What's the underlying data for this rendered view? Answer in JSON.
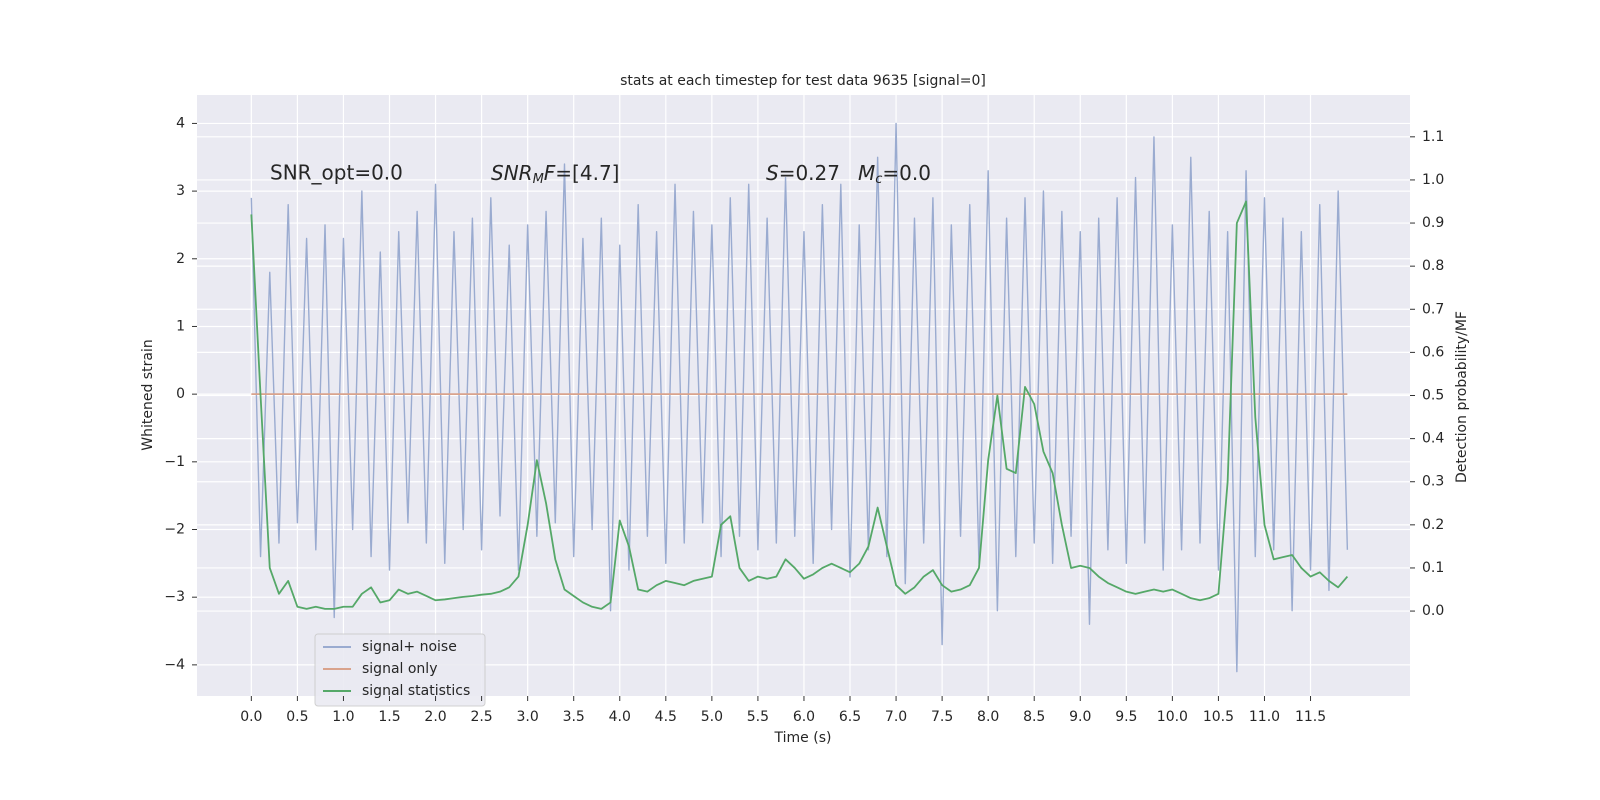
{
  "chart_data": {
    "type": "line",
    "title": "stats at each timestep for test data 9635 [signal=0]",
    "xlabel": "Time (s)",
    "ylabel": "Whitened strain",
    "y2label": "Detection probability/MF",
    "annotations": {
      "snr_opt": "SNR_opt=0.0",
      "snr_mf": [
        "SNR",
        "M",
        "F",
        "=[4.7]"
      ],
      "stats": [
        "S",
        "=0.27",
        "M",
        "c",
        "=0.0"
      ]
    },
    "xlim": [
      -0.59,
      12.58
    ],
    "ylim": [
      -4.46,
      4.42
    ],
    "y2lim": [
      -0.197,
      1.197
    ],
    "xticks": [
      {
        "value": 0,
        "label": "0.0"
      },
      {
        "value": 0.5,
        "label": "0.5"
      },
      {
        "value": 1,
        "label": "1.0"
      },
      {
        "value": 1.5,
        "label": "1.5"
      },
      {
        "value": 2,
        "label": "2.0"
      },
      {
        "value": 2.5,
        "label": "2.5"
      },
      {
        "value": 3,
        "label": "3.0"
      },
      {
        "value": 3.5,
        "label": "3.5"
      },
      {
        "value": 4,
        "label": "4.0"
      },
      {
        "value": 4.5,
        "label": "4.5"
      },
      {
        "value": 5,
        "label": "5.0"
      },
      {
        "value": 5.5,
        "label": "5.5"
      },
      {
        "value": 6,
        "label": "6.0"
      },
      {
        "value": 6.5,
        "label": "6.5"
      },
      {
        "value": 7,
        "label": "7.0"
      },
      {
        "value": 7.5,
        "label": "7.5"
      },
      {
        "value": 8,
        "label": "8.0"
      },
      {
        "value": 8.5,
        "label": "8.5"
      },
      {
        "value": 9,
        "label": "9.0"
      },
      {
        "value": 9.5,
        "label": "9.5"
      },
      {
        "value": 10,
        "label": "10.0"
      },
      {
        "value": 10.5,
        "label": "10.5"
      },
      {
        "value": 11,
        "label": "11.0"
      },
      {
        "value": 11.5,
        "label": "11.5"
      }
    ],
    "yticks": [
      4,
      3,
      2,
      1,
      0,
      {
        "value": -1,
        "label": "−1"
      },
      {
        "value": -2,
        "label": "−2"
      },
      {
        "value": -3,
        "label": "−3"
      },
      {
        "value": -4,
        "label": "−4"
      }
    ],
    "y2ticks": [
      {
        "value": 0,
        "label": "0.0"
      },
      {
        "value": 0.1,
        "label": "0.1"
      },
      {
        "value": 0.2,
        "label": "0.2"
      },
      {
        "value": 0.3,
        "label": "0.3"
      },
      {
        "value": 0.4,
        "label": "0.4"
      },
      {
        "value": 0.5,
        "label": "0.5"
      },
      {
        "value": 0.6,
        "label": "0.6"
      },
      {
        "value": 0.7,
        "label": "0.7"
      },
      {
        "value": 0.8,
        "label": "0.8"
      },
      {
        "value": 0.9,
        "label": "0.9"
      },
      {
        "value": 1,
        "label": "1.0"
      },
      {
        "value": 1.1,
        "label": "1.1"
      }
    ],
    "grid": true,
    "legend": "lower left",
    "x": [
      0,
      0.1,
      0.2,
      0.3,
      0.4,
      0.5,
      0.6,
      0.7,
      0.8,
      0.9,
      1,
      1.1,
      1.2,
      1.3,
      1.4,
      1.5,
      1.6,
      1.7,
      1.8,
      1.9,
      2,
      2.1,
      2.2,
      2.3,
      2.4,
      2.5,
      2.6,
      2.7,
      2.8,
      2.9,
      3,
      3.1,
      3.2,
      3.3,
      3.4,
      3.5,
      3.6,
      3.7,
      3.8,
      3.9,
      4,
      4.1,
      4.2,
      4.3,
      4.4,
      4.5,
      4.6,
      4.7,
      4.8,
      4.9,
      5,
      5.1,
      5.2,
      5.3,
      5.4,
      5.5,
      5.6,
      5.7,
      5.8,
      5.9,
      6,
      6.1,
      6.2,
      6.3,
      6.4,
      6.5,
      6.6,
      6.7,
      6.8,
      6.9,
      7,
      7.1,
      7.2,
      7.3,
      7.4,
      7.5,
      7.6,
      7.7,
      7.8,
      7.9,
      8,
      8.1,
      8.2,
      8.3,
      8.4,
      8.5,
      8.6,
      8.7,
      8.8,
      8.9,
      9,
      9.1,
      9.2,
      9.3,
      9.4,
      9.5,
      9.6,
      9.7,
      9.8,
      9.9,
      10,
      10.1,
      10.2,
      10.3,
      10.4,
      10.5,
      10.6,
      10.7,
      10.8,
      10.9,
      11,
      11.1,
      11.2,
      11.3,
      11.4,
      11.5,
      11.6,
      11.7,
      11.8,
      11.9
    ],
    "series": [
      {
        "name": "signal+ noise",
        "color": "#9aabd0",
        "values": [
          2.9,
          -2.4,
          1.8,
          -2.2,
          2.8,
          -1.9,
          2.3,
          -2.3,
          2.5,
          -3.3,
          2.3,
          -2.0,
          3.0,
          -2.4,
          2.1,
          -2.6,
          2.4,
          -1.9,
          2.7,
          -2.2,
          3.1,
          -2.5,
          2.4,
          -2.0,
          2.6,
          -2.3,
          2.9,
          -1.8,
          2.2,
          -2.6,
          2.5,
          -2.1,
          2.7,
          -1.9,
          3.4,
          -2.4,
          2.3,
          -2.0,
          2.6,
          -3.2,
          2.2,
          -2.6,
          2.8,
          -2.1,
          2.4,
          -2.5,
          3.1,
          -2.2,
          2.7,
          -1.9,
          2.5,
          -2.4,
          2.9,
          -2.1,
          3.1,
          -2.3,
          2.6,
          -2.2,
          3.2,
          -2.1,
          2.4,
          -2.5,
          2.8,
          -2.0,
          3.1,
          -2.7,
          2.5,
          -2.3,
          3.5,
          -2.4,
          4.0,
          -2.8,
          2.6,
          -2.2,
          2.9,
          -3.7,
          2.5,
          -2.1,
          2.8,
          -2.5,
          3.3,
          -3.2,
          2.6,
          -2.4,
          2.9,
          -2.2,
          3.0,
          -2.5,
          2.7,
          -2.1,
          2.4,
          -3.4,
          2.6,
          -2.3,
          2.9,
          -2.5,
          3.2,
          -2.2,
          3.8,
          -2.6,
          2.5,
          -2.3,
          3.5,
          -2.2,
          2.7,
          -2.6,
          2.4,
          -4.1,
          3.3,
          -2.4,
          2.9,
          -2.3,
          2.6,
          -3.2,
          2.4,
          -2.6,
          2.8,
          -2.9,
          3.0,
          -2.3
        ]
      },
      {
        "name": "signal only",
        "color": "#d9a38c",
        "values": [
          0,
          0,
          0,
          0,
          0,
          0,
          0,
          0,
          0,
          0,
          0,
          0,
          0,
          0,
          0,
          0,
          0,
          0,
          0,
          0,
          0,
          0,
          0,
          0,
          0,
          0,
          0,
          0,
          0,
          0,
          0,
          0,
          0,
          0,
          0,
          0,
          0,
          0,
          0,
          0,
          0,
          0,
          0,
          0,
          0,
          0,
          0,
          0,
          0,
          0,
          0,
          0,
          0,
          0,
          0,
          0,
          0,
          0,
          0,
          0,
          0,
          0,
          0,
          0,
          0,
          0,
          0,
          0,
          0,
          0,
          0,
          0,
          0,
          0,
          0,
          0,
          0,
          0,
          0,
          0,
          0,
          0,
          0,
          0,
          0,
          0,
          0,
          0,
          0,
          0,
          0,
          0,
          0,
          0,
          0,
          0,
          0,
          0,
          0,
          0,
          0,
          0,
          0,
          0,
          0,
          0,
          0,
          0,
          0,
          0,
          0,
          0,
          0,
          0,
          0,
          0,
          0,
          0,
          0,
          0
        ]
      },
      {
        "name": "signal statistics",
        "color": "#55a868",
        "axis": "y2",
        "values": [
          0.92,
          0.5,
          0.1,
          0.04,
          0.07,
          0.01,
          0.005,
          0.01,
          0.005,
          0.005,
          0.01,
          0.01,
          0.04,
          0.055,
          0.02,
          0.025,
          0.05,
          0.04,
          0.045,
          0.035,
          0.025,
          0.027,
          0.03,
          0.033,
          0.035,
          0.038,
          0.04,
          0.045,
          0.055,
          0.08,
          0.2,
          0.35,
          0.25,
          0.12,
          0.05,
          0.035,
          0.02,
          0.01,
          0.005,
          0.02,
          0.21,
          0.15,
          0.05,
          0.045,
          0.06,
          0.07,
          0.065,
          0.06,
          0.07,
          0.075,
          0.08,
          0.2,
          0.22,
          0.1,
          0.07,
          0.08,
          0.075,
          0.08,
          0.12,
          0.1,
          0.075,
          0.085,
          0.1,
          0.11,
          0.1,
          0.09,
          0.11,
          0.15,
          0.24,
          0.15,
          0.06,
          0.04,
          0.055,
          0.08,
          0.095,
          0.06,
          0.045,
          0.05,
          0.06,
          0.1,
          0.35,
          0.5,
          0.33,
          0.32,
          0.52,
          0.48,
          0.37,
          0.32,
          0.2,
          0.1,
          0.105,
          0.1,
          0.08,
          0.065,
          0.055,
          0.045,
          0.04,
          0.045,
          0.05,
          0.045,
          0.05,
          0.04,
          0.03,
          0.025,
          0.03,
          0.04,
          0.3,
          0.9,
          0.95,
          0.45,
          0.2,
          0.12,
          0.125,
          0.13,
          0.1,
          0.08,
          0.09,
          0.07,
          0.055,
          0.08
        ]
      }
    ]
  }
}
